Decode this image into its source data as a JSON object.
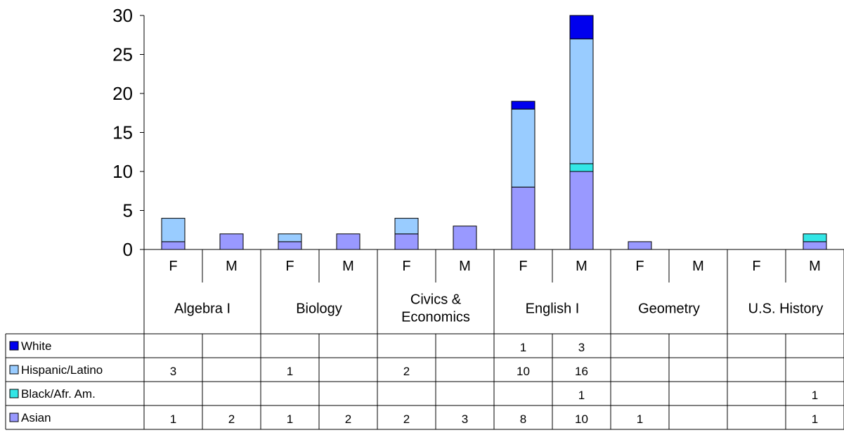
{
  "chart_data": {
    "type": "bar",
    "stacked": true,
    "title": "",
    "xlabel": "",
    "ylabel": "",
    "ylim": [
      0,
      30
    ],
    "yticks": [
      0,
      5,
      10,
      15,
      20,
      25,
      30
    ],
    "grid": false,
    "legend": "in data table",
    "groups": [
      "Algebra I",
      "Biology",
      "Civics & Economics",
      "English I",
      "Geometry",
      "U.S. History"
    ],
    "subcategories": [
      "F",
      "M",
      "F",
      "M",
      "F",
      "M",
      "F",
      "M",
      "F",
      "M",
      "F",
      "M"
    ],
    "series": [
      {
        "name": "White",
        "color": "#0000ee",
        "values": [
          null,
          null,
          null,
          null,
          null,
          null,
          1,
          3,
          null,
          null,
          null,
          null
        ]
      },
      {
        "name": "Hispanic/Latino",
        "color": "#99ccff",
        "values": [
          3,
          null,
          1,
          null,
          2,
          null,
          10,
          16,
          null,
          null,
          null,
          null
        ]
      },
      {
        "name": "Black/Afr. Am.",
        "color": "#33e6e6",
        "values": [
          null,
          null,
          null,
          null,
          null,
          null,
          null,
          1,
          null,
          null,
          null,
          1
        ]
      },
      {
        "name": "Asian",
        "color": "#9999ff",
        "values": [
          1,
          2,
          1,
          2,
          2,
          3,
          8,
          10,
          1,
          null,
          null,
          1
        ]
      }
    ]
  }
}
